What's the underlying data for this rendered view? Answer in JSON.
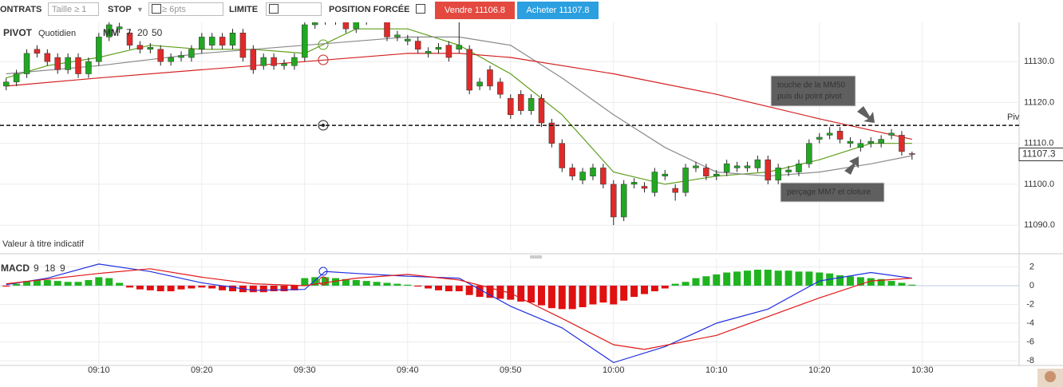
{
  "toolbar": {
    "contracts_label": "ONTRATS",
    "size_placeholder": "Taille ≥ 1",
    "stop_label": "STOP",
    "stop_placeholder": "≥ 6pts",
    "limit_label": "LIMITE",
    "forced_label": "POSITION FORCÉE",
    "sell_button": "Vendre 11106.8",
    "buy_button": "Acheter 11107.8"
  },
  "chart_data": [
    {
      "type": "candlestick",
      "title": "PIVOT",
      "subtitle": "Quotidien",
      "ma_label": "MM",
      "footnote": "Valeur à titre indicatif",
      "up_color": "#22a722",
      "down_color": "#e02a2a",
      "xlim": [
        540.4,
        639.4
      ],
      "ylim": [
        11083.6,
        11139.2
      ],
      "yticks": [
        {
          "value": 11090,
          "label": "11090.0"
        },
        {
          "value": 11100,
          "label": "11100.0"
        },
        {
          "value": 11110,
          "label": "11110.0"
        },
        {
          "value": 11120,
          "label": "11120.0"
        },
        {
          "value": 11130,
          "label": "11130.0"
        }
      ],
      "x": [
        541,
        542,
        543,
        544,
        545,
        546,
        547,
        548,
        549,
        550,
        551,
        552,
        553,
        554,
        555,
        556,
        557,
        558,
        559,
        560,
        561,
        562,
        563,
        564,
        565,
        566,
        567,
        568,
        569,
        570,
        571,
        572,
        573,
        574,
        575,
        576,
        577,
        578,
        579,
        580,
        581,
        582,
        583,
        584,
        585,
        586,
        587,
        588,
        589,
        590,
        591,
        592,
        593,
        594,
        595,
        596,
        597,
        598,
        599,
        600,
        601,
        602,
        603,
        604,
        605,
        606,
        607,
        608,
        609,
        610,
        611,
        612,
        613,
        614,
        615,
        616,
        617,
        618,
        619,
        620,
        621,
        622,
        623,
        624,
        625,
        626,
        627,
        628,
        629
      ],
      "open": [
        11124,
        11125,
        11127,
        11133,
        11132,
        11131,
        11128,
        11131,
        11127,
        11130,
        11136,
        11138,
        11137,
        11134,
        11133,
        11133,
        11130,
        11131,
        11131,
        11133,
        11134,
        11136,
        11134,
        11137,
        11133,
        11129,
        11131,
        11129,
        11129,
        11131,
        11139,
        11140,
        11140,
        11140,
        11138,
        11140,
        11141,
        11140,
        11136,
        11135,
        11135,
        11132,
        11133,
        11134,
        11133,
        11133,
        11124,
        11128,
        11125,
        11121,
        11122,
        11118,
        11121,
        11115,
        11110,
        11104,
        11101,
        11102,
        11104,
        11100,
        11092,
        11100,
        11099.5,
        11098,
        11102,
        11099,
        11098,
        11104,
        11104,
        11102,
        11103,
        11104,
        11104,
        11104,
        11106,
        11101,
        11103,
        11103,
        11105,
        11111,
        11112,
        11113,
        11110,
        11109,
        11110,
        11110,
        11112,
        11112,
        11107.5
      ],
      "high": [
        11126,
        11128,
        11133,
        11134,
        11133,
        11132,
        11132,
        11132,
        11131,
        11137,
        11140,
        11139.5,
        11138,
        11135,
        11134.5,
        11134,
        11132,
        11132.5,
        11134,
        11137,
        11137,
        11137,
        11138,
        11138,
        11134,
        11132,
        11132,
        11130.5,
        11132,
        11140,
        11140.5,
        11141.5,
        11141.5,
        11141,
        11141,
        11142,
        11142.5,
        11141,
        11137.5,
        11136.5,
        11136,
        11133.5,
        11134.5,
        11135,
        11140,
        11134,
        11126,
        11129,
        11126,
        11122,
        11123,
        11122,
        11122,
        11116,
        11111,
        11105,
        11104,
        11105,
        11105,
        11101,
        11101,
        11101.5,
        11100.5,
        11104,
        11103.5,
        11100,
        11105,
        11105.5,
        11105,
        11103.5,
        11106,
        11105.5,
        11105.5,
        11107,
        11107,
        11105,
        11104.5,
        11106,
        11111,
        11112.5,
        11114,
        11114,
        11111.5,
        11111,
        11111.5,
        11112,
        11113.5,
        11113,
        11108
      ],
      "low": [
        11123,
        11124,
        11126,
        11131,
        11129,
        11127,
        11127,
        11126,
        11126,
        11129,
        11135,
        11137,
        11133,
        11132,
        11132,
        11129,
        11129,
        11130,
        11130,
        11132,
        11133,
        11133,
        11133,
        11130,
        11127,
        11128,
        11128,
        11128,
        11128,
        11130,
        11138,
        11139,
        11139,
        11137,
        11137,
        11139,
        11140,
        11135,
        11135,
        11134,
        11132,
        11131,
        11132,
        11130,
        11132,
        11122,
        11123,
        11123,
        11121,
        11116,
        11117,
        11117,
        11114,
        11109,
        11103,
        11101,
        11100,
        11101,
        11099,
        11090,
        11091,
        11099,
        11098,
        11097,
        11101,
        11096,
        11097,
        11103,
        11101,
        11101,
        11102,
        11103,
        11103,
        11103,
        11100,
        11100,
        11102,
        11102,
        11104,
        11110,
        11111,
        11110,
        11109,
        11108,
        11109,
        11109,
        11111,
        11107,
        11106
      ],
      "close": [
        11125,
        11127,
        11132,
        11132,
        11130,
        11128,
        11131,
        11127,
        11130,
        11136,
        11139,
        11138.5,
        11134,
        11133,
        11133.5,
        11130,
        11131,
        11131.5,
        11133,
        11136,
        11136,
        11134,
        11137,
        11131,
        11128,
        11131,
        11129,
        11129.5,
        11131,
        11139,
        11139.5,
        11140.5,
        11140.5,
        11138,
        11140,
        11141,
        11141.5,
        11136,
        11136.5,
        11135.5,
        11133,
        11132.5,
        11133.5,
        11131,
        11134,
        11123,
        11125,
        11124,
        11122,
        11117,
        11118,
        11121,
        11115,
        11110,
        11104,
        11102,
        11103,
        11104,
        11100,
        11092,
        11100,
        11100.5,
        11099,
        11103,
        11102.5,
        11098,
        11104,
        11104.5,
        11102,
        11102.5,
        11105,
        11104.5,
        11104.5,
        11106,
        11101,
        11104,
        11103.5,
        11105,
        11110,
        11111.5,
        11112.5,
        11111,
        11110.5,
        11110,
        11110.5,
        11111,
        11112.5,
        11108,
        11107.3
      ],
      "series": [
        {
          "name": "7",
          "color": "#5e9e1c",
          "x": [
            541,
            545,
            550,
            555,
            560,
            565,
            570,
            575,
            580,
            585,
            590,
            595,
            600,
            605,
            610,
            615,
            620,
            625,
            629
          ],
          "values": [
            11126,
            11129,
            11131,
            11134,
            11133,
            11133,
            11132,
            11138,
            11138,
            11134,
            11127,
            11117,
            11103,
            11100,
            11102,
            11103,
            11106,
            11110,
            11110
          ]
        },
        {
          "name": "20",
          "color": "#8a8a8a",
          "x": [
            541,
            550,
            560,
            570,
            580,
            585,
            590,
            595,
            600,
            605,
            610,
            615,
            620,
            625,
            629
          ],
          "values": [
            11127,
            11129,
            11132,
            11134,
            11136,
            11136,
            11134,
            11126,
            11117,
            11109,
            11103,
            11102,
            11103,
            11105,
            11107
          ]
        },
        {
          "name": "50",
          "color": "#d42020",
          "x": [
            541,
            550,
            560,
            570,
            580,
            585,
            590,
            600,
            610,
            620,
            629
          ],
          "values": [
            11124,
            11126,
            11128,
            11130,
            11132,
            11132,
            11131,
            11127,
            11122,
            11116,
            11111
          ]
        }
      ],
      "pivot": {
        "label": "Piv",
        "value": 11114.4
      },
      "last_price": 11107.3,
      "annotations": [
        {
          "lines": [
            "touche de la MM50",
            "puis du point pivot"
          ]
        },
        {
          "lines": [
            "perçage MM7 et cloture"
          ]
        }
      ]
    },
    {
      "type": "macd",
      "title": "MACD",
      "params": [
        "9",
        "18",
        "9"
      ],
      "pos_color": "#1fb41f",
      "neg_color": "#e01010",
      "xlim": [
        540.4,
        639.4
      ],
      "ylim": [
        -8.51,
        2.72
      ],
      "yticks": [
        2,
        0,
        -2,
        -4,
        -6,
        -8
      ],
      "xticks": [
        {
          "value": 550,
          "label": "09:10"
        },
        {
          "value": 560,
          "label": "09:20"
        },
        {
          "value": 570,
          "label": "09:30"
        },
        {
          "value": 580,
          "label": "09:40"
        },
        {
          "value": 590,
          "label": "09:50"
        },
        {
          "value": 600,
          "label": "10:00"
        },
        {
          "value": 610,
          "label": "10:10"
        },
        {
          "value": 620,
          "label": "10:20"
        },
        {
          "value": 630,
          "label": "10:30"
        }
      ],
      "x": [
        541,
        542,
        543,
        544,
        545,
        546,
        547,
        548,
        549,
        550,
        551,
        552,
        553,
        554,
        555,
        556,
        557,
        558,
        559,
        560,
        561,
        562,
        563,
        564,
        565,
        566,
        567,
        568,
        569,
        570,
        571,
        572,
        573,
        574,
        575,
        576,
        577,
        578,
        579,
        580,
        581,
        582,
        583,
        584,
        585,
        586,
        587,
        588,
        589,
        590,
        591,
        592,
        593,
        594,
        595,
        596,
        597,
        598,
        599,
        600,
        601,
        602,
        603,
        604,
        605,
        606,
        607,
        608,
        609,
        610,
        611,
        612,
        613,
        614,
        615,
        616,
        617,
        618,
        619,
        620,
        621,
        622,
        623,
        624,
        625,
        626,
        627,
        628,
        629
      ],
      "values": [
        -0.1,
        0.2,
        0.5,
        0.6,
        0.6,
        0.5,
        0.4,
        0.4,
        0.6,
        0.9,
        0.8,
        0.3,
        -0.2,
        -0.4,
        -0.5,
        -0.6,
        -0.6,
        -0.4,
        -0.3,
        -0.2,
        -0.3,
        -0.5,
        -0.6,
        -0.7,
        -0.7,
        -0.7,
        -0.6,
        -0.6,
        -0.5,
        0.8,
        0.9,
        0.9,
        0.8,
        0.7,
        0.6,
        0.5,
        0.4,
        0.3,
        0.2,
        0.1,
        -0.1,
        -0.3,
        -0.5,
        -0.6,
        -0.6,
        -1.0,
        -1.2,
        -1.3,
        -1.4,
        -1.5,
        -1.7,
        -1.8,
        -2.1,
        -2.4,
        -2.5,
        -2.5,
        -2.3,
        -2.0,
        -1.8,
        -2.0,
        -1.6,
        -1.2,
        -0.9,
        -0.6,
        -0.3,
        0.2,
        0.4,
        0.8,
        1.0,
        1.2,
        1.4,
        1.5,
        1.6,
        1.7,
        1.7,
        1.6,
        1.6,
        1.5,
        1.5,
        1.4,
        1.3,
        1.1,
        1.0,
        0.9,
        0.8,
        0.7,
        0.5,
        0.3,
        0.1
      ],
      "series": [
        {
          "color": "#2030e0",
          "x": [
            541,
            545,
            550,
            555,
            560,
            565,
            570,
            572,
            575,
            580,
            585,
            590,
            595,
            600,
            605,
            610,
            615,
            620,
            625,
            629
          ],
          "values": [
            0.1,
            0.8,
            2.3,
            1.5,
            0.3,
            -0.5,
            -0.4,
            1.5,
            1.3,
            1.0,
            0.8,
            -2.2,
            -4.5,
            -8.2,
            -6.5,
            -4,
            -2.5,
            0.5,
            1.4,
            0.8
          ]
        },
        {
          "color": "#e01818",
          "x": [
            541,
            550,
            555,
            560,
            565,
            570,
            575,
            580,
            585,
            590,
            595,
            600,
            603,
            610,
            615,
            620,
            625,
            629
          ],
          "values": [
            0.2,
            1.3,
            1.8,
            0.9,
            0.2,
            0,
            0.8,
            1.2,
            0.6,
            -0.8,
            -3.5,
            -6.3,
            -6.8,
            -5.3,
            -3.3,
            -1.3,
            0.5,
            0.8
          ]
        }
      ]
    }
  ]
}
